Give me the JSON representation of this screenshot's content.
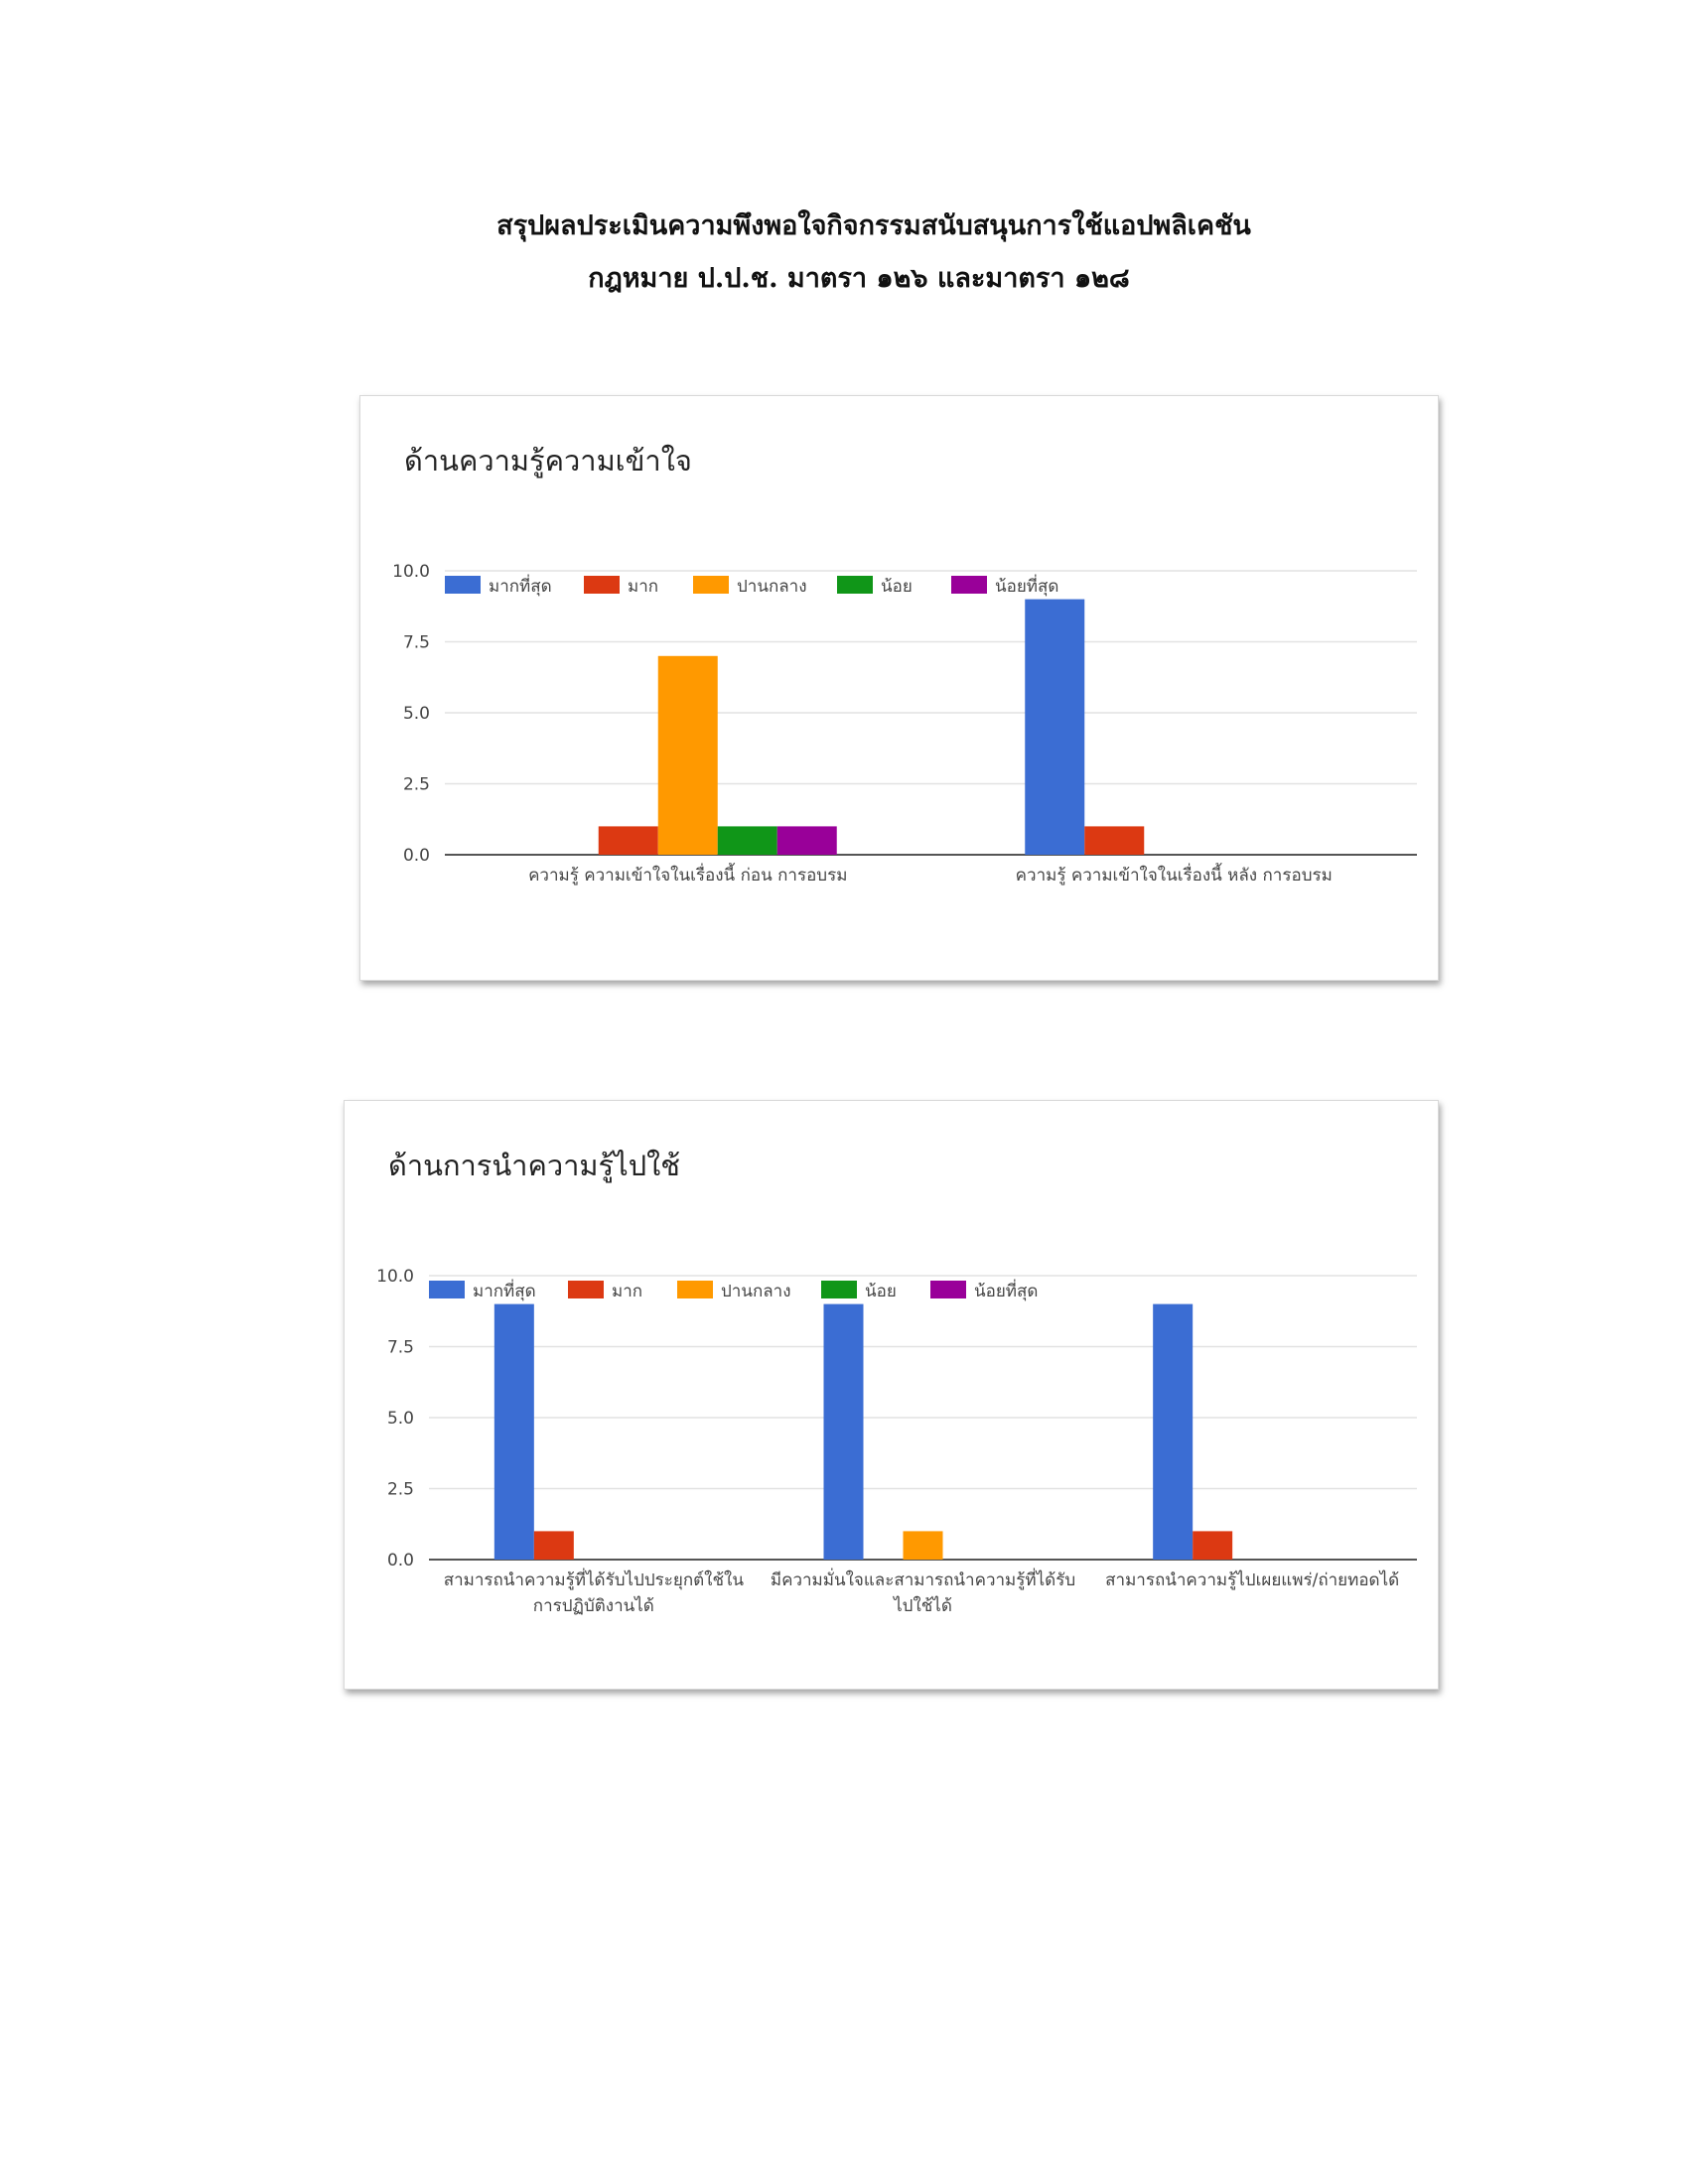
{
  "document": {
    "title_line_1": "สรุปผลประเมินความพึงพอใจกิจกรรมสนับสนุนการใช้แอปพลิเคชัน",
    "title_line_2": "กฎหมาย ป.ป.ช. มาตรา ๑๒๖ และมาตรา ๑๒๘"
  },
  "colors": {
    "series": [
      "#3b6dd3",
      "#dc3912",
      "#ff9900",
      "#109618",
      "#990099"
    ],
    "gridline": "#e2e2e2",
    "baseline": "#555555",
    "text": "#444444"
  },
  "chart_data": [
    {
      "type": "bar",
      "title": "ด้านความรู้ความเข้าใจ",
      "categories": [
        [
          "ความรู้ ความเข้าใจในเรื่องนี้ ก่อน การอบรม"
        ],
        [
          "ความรู้ ความเข้าใจในเรื่องนี้ หลัง การอบรม"
        ]
      ],
      "series": [
        {
          "name": "มากที่สุด",
          "values": [
            0,
            9
          ]
        },
        {
          "name": "มาก",
          "values": [
            1,
            1
          ]
        },
        {
          "name": "ปานกลาง",
          "values": [
            7,
            0
          ]
        },
        {
          "name": "น้อย",
          "values": [
            1,
            0
          ]
        },
        {
          "name": "น้อยที่สุด",
          "values": [
            1,
            0
          ]
        }
      ],
      "ylim": [
        0,
        10
      ],
      "yticks": [
        "0.0",
        "2.5",
        "5.0",
        "7.5",
        "10.0"
      ],
      "legend_position": "top-left",
      "grid": true
    },
    {
      "type": "bar",
      "title": "ด้านการนำความรู้ไปใช้",
      "categories": [
        [
          "สามารถนำความรู้ที่ได้รับไปประยุกต์ใช้ใน",
          "การปฏิบัติงานได้"
        ],
        [
          "มีความมั่นใจและสามารถนำความรู้ที่ได้รับ",
          "ไปใช้ได้"
        ],
        [
          "สามารถนำความรู้ไปเผยแพร่/ถ่ายทอดได้"
        ]
      ],
      "series": [
        {
          "name": "มากที่สุด",
          "values": [
            9,
            9,
            9
          ]
        },
        {
          "name": "มาก",
          "values": [
            1,
            0,
            1
          ]
        },
        {
          "name": "ปานกลาง",
          "values": [
            0,
            1,
            0
          ]
        },
        {
          "name": "น้อย",
          "values": [
            0,
            0,
            0
          ]
        },
        {
          "name": "น้อยที่สุด",
          "values": [
            0,
            0,
            0
          ]
        }
      ],
      "ylim": [
        0,
        10
      ],
      "yticks": [
        "0.0",
        "2.5",
        "5.0",
        "7.5",
        "10.0"
      ],
      "legend_position": "top-left",
      "grid": true
    }
  ]
}
